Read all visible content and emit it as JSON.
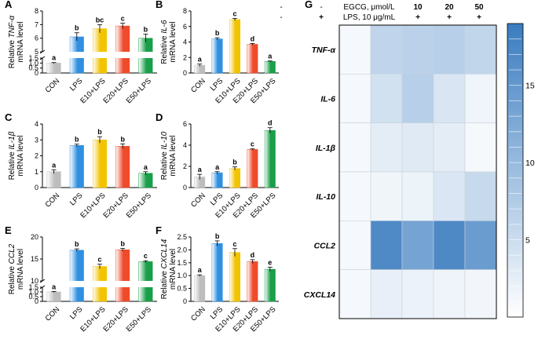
{
  "colors": {
    "CON": "#bdbdbd",
    "LPS": "#2f8fe0",
    "E10+LPS": "#f2c400",
    "E20+LPS": "#ef4a2a",
    "E50+LPS": "#1a9e4a",
    "heat_low": "#ffffff",
    "heat_high": "#3a7cc0"
  },
  "chart_data": [
    {
      "type": "bar",
      "panel": "A",
      "gene": "TNF-α",
      "ylabel_prefix": "Relative",
      "ylabel_suffix": "mRNA level",
      "categories": [
        "CON",
        "LPS",
        "E10+LPS",
        "E20+LPS",
        "E50+LPS"
      ],
      "values": [
        1.0,
        6.1,
        6.7,
        6.9,
        6.0
      ],
      "errors": [
        0.05,
        0.3,
        0.3,
        0.2,
        0.3
      ],
      "letters": [
        "a",
        "b",
        "bc",
        "c",
        "b"
      ],
      "broken": true,
      "lower": {
        "ylim": [
          0,
          1.5
        ],
        "ticks": [
          "0",
          "0.5",
          "1.0",
          "1.5"
        ]
      },
      "upper": {
        "ylim": [
          5,
          8
        ],
        "ticks": [
          "5",
          "6",
          "7",
          "8"
        ]
      }
    },
    {
      "type": "bar",
      "panel": "B",
      "gene": "IL-6",
      "ylabel_prefix": "Relative",
      "ylabel_suffix": "mRNA level",
      "categories": [
        "CON",
        "LPS",
        "E10+LPS",
        "E20+LPS",
        "E50+LPS"
      ],
      "values": [
        1.0,
        4.4,
        6.9,
        3.7,
        1.5
      ],
      "errors": [
        0.15,
        0.15,
        0.15,
        0.1,
        0.05
      ],
      "letters": [
        "a",
        "b",
        "c",
        "d",
        "a"
      ],
      "broken": false,
      "ylim": [
        0,
        8
      ],
      "ticks": [
        "0",
        "2",
        "4",
        "6",
        "8"
      ]
    },
    {
      "type": "bar",
      "panel": "C",
      "gene": "IL-1β",
      "ylabel_prefix": "Relative",
      "ylabel_suffix": "mRNA level",
      "categories": [
        "CON",
        "LPS",
        "E10+LPS",
        "E20+LPS",
        "E50+LPS"
      ],
      "values": [
        1.0,
        2.65,
        3.0,
        2.6,
        0.9
      ],
      "errors": [
        0.12,
        0.08,
        0.2,
        0.15,
        0.1
      ],
      "letters": [
        "a",
        "b",
        "b",
        "b",
        "a"
      ],
      "broken": false,
      "ylim": [
        0,
        4
      ],
      "ticks": [
        "0",
        "1",
        "2",
        "3",
        "4"
      ]
    },
    {
      "type": "bar",
      "panel": "D",
      "gene": "IL-10",
      "ylabel_prefix": "Relative",
      "ylabel_suffix": "mRNA level",
      "categories": [
        "CON",
        "LPS",
        "E10+LPS",
        "E20+LPS",
        "E50+LPS"
      ],
      "values": [
        1.0,
        1.4,
        1.8,
        3.6,
        5.4
      ],
      "errors": [
        0.25,
        0.1,
        0.15,
        0.05,
        0.25
      ],
      "letters": [
        "a",
        "a",
        "b",
        "c",
        "d"
      ],
      "broken": false,
      "ylim": [
        0,
        6
      ],
      "ticks": [
        "0",
        "2",
        "4",
        "6"
      ]
    },
    {
      "type": "bar",
      "panel": "E",
      "gene": "CCL2",
      "ylabel_prefix": "Relative",
      "ylabel_suffix": "mRNA level",
      "categories": [
        "CON",
        "LPS",
        "E10+LPS",
        "E20+LPS",
        "E50+LPS"
      ],
      "values": [
        1.0,
        17.0,
        13.3,
        17.1,
        14.4
      ],
      "errors": [
        0.05,
        0.3,
        0.5,
        0.3,
        0.2
      ],
      "letters": [
        "a",
        "b",
        "c",
        "b",
        "c"
      ],
      "broken": true,
      "lower": {
        "ylim": [
          0,
          1.5
        ],
        "ticks": [
          "0",
          "0.5",
          "1.0",
          "1.5"
        ]
      },
      "upper": {
        "ylim": [
          10,
          20
        ],
        "ticks": [
          "10",
          "15",
          "20"
        ]
      }
    },
    {
      "type": "bar",
      "panel": "F",
      "gene": "CXCL14",
      "ylabel_prefix": "Relative",
      "ylabel_suffix": "mRNA level",
      "categories": [
        "CON",
        "LPS",
        "E10+LPS",
        "E20+LPS",
        "E50+LPS"
      ],
      "values": [
        1.0,
        2.25,
        1.9,
        1.55,
        1.25
      ],
      "errors": [
        0.03,
        0.1,
        0.15,
        0.07,
        0.08
      ],
      "letters": [
        "a",
        "b",
        "c",
        "d",
        "e"
      ],
      "broken": false,
      "ylim": [
        0,
        2.5
      ],
      "ticks": [
        "0",
        "0.5",
        "1.0",
        "1.5",
        "2.0",
        "2.5"
      ]
    },
    {
      "type": "heatmap",
      "panel": "G",
      "header_rows": [
        {
          "label": "EGCG, μmol/L",
          "values": [
            "-",
            "-",
            "10",
            "20",
            "50"
          ]
        },
        {
          "label": "LPS, 10 μg/mL",
          "values": [
            "-",
            "+",
            "+",
            "+",
            "+"
          ]
        }
      ],
      "rows": [
        "TNF-α",
        "IL-6",
        "IL-1β",
        "IL-10",
        "CCL2",
        "CXCL14"
      ],
      "values": [
        [
          1.0,
          6.1,
          6.7,
          6.9,
          6.0
        ],
        [
          1.0,
          4.4,
          6.9,
          3.7,
          1.5
        ],
        [
          1.0,
          2.65,
          3.0,
          2.6,
          0.9
        ],
        [
          1.0,
          1.4,
          1.8,
          3.6,
          5.4
        ],
        [
          1.0,
          17.0,
          13.3,
          17.1,
          14.4
        ],
        [
          1.0,
          2.25,
          1.9,
          1.55,
          1.25
        ]
      ],
      "colorbar": {
        "range": [
          0,
          19
        ],
        "ticks": [
          "5",
          "10",
          "15"
        ],
        "tick_values": [
          5,
          10,
          15
        ]
      }
    }
  ]
}
